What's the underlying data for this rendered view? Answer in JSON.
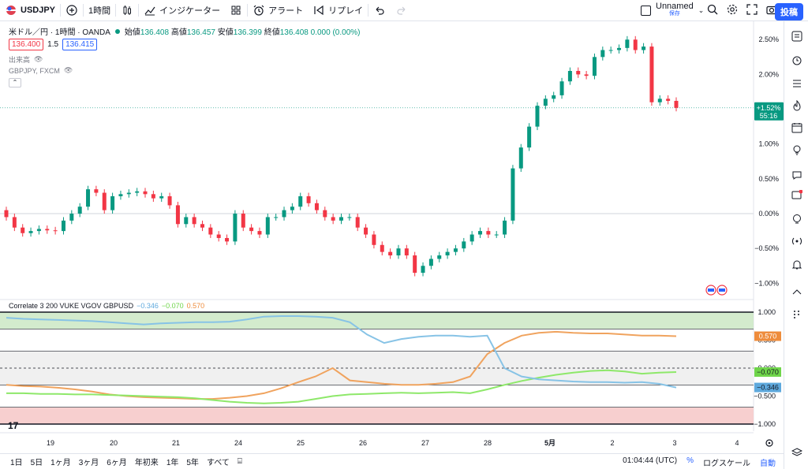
{
  "toolbar": {
    "symbol": "USDJPY",
    "interval": "1時間",
    "indicators": "インジケーター",
    "alert": "アラート",
    "replay": "リプレイ",
    "layout_name": "Unnamed",
    "layout_status": "保存",
    "publish": "投稿"
  },
  "legend": {
    "title": "米ドル／円 · 1時間 · OANDA",
    "open_label": "始値",
    "open": "136.408",
    "high_label": "高値",
    "high": "136.457",
    "low_label": "安値",
    "low": "136.399",
    "close_label": "終値",
    "close": "136.408",
    "change": "0.000 (0.00%)",
    "bid": "136.400",
    "spread": "1.5",
    "ask": "136.415",
    "volume_label": "出来高",
    "compare_label": "GBPJPY, FXCM"
  },
  "price_scale": {
    "labels": [
      "2.50%",
      "2.00%",
      "1.50%",
      "1.00%",
      "0.50%",
      "0.00%",
      "−0.50%",
      "−1.00%"
    ],
    "current_label": "+1.52%",
    "countdown": "55:16",
    "current_color": "#089981"
  },
  "indicator": {
    "name": "Correlate 3 200 VUKE VGOV GBPUSD",
    "v1": "−0.346",
    "v2": "−0.070",
    "v3": "0.570",
    "scale_labels": [
      "1.000",
      "0.500",
      "0.000",
      "−0.500",
      "−1.000"
    ],
    "label_orange": "0.570",
    "label_green": "−0.070",
    "label_blue": "−0.346",
    "colors": {
      "blue": "#87c3e6",
      "green": "#8ee86a",
      "orange": "#f0a35e"
    }
  },
  "time_axis": [
    "19",
    "20",
    "21",
    "24",
    "25",
    "26",
    "27",
    "28",
    "5月",
    "2",
    "3",
    "4"
  ],
  "bottombar": {
    "ranges": [
      "1日",
      "5日",
      "1ヶ月",
      "3ヶ月",
      "6ヶ月",
      "年初来",
      "1年",
      "5年",
      "すべて"
    ],
    "time": "01:04:44 (UTC)",
    "percent": "%",
    "log": "ログスケール",
    "auto": "自動"
  },
  "chart_data": {
    "type": "candlestick",
    "ylabel": "%",
    "ylim": [
      -1.2,
      2.65
    ],
    "closes_pct": [
      -0.05,
      -0.2,
      -0.28,
      -0.25,
      -0.22,
      -0.24,
      -0.25,
      -0.1,
      0.0,
      0.1,
      0.35,
      0.3,
      0.05,
      0.25,
      0.28,
      0.3,
      0.32,
      0.28,
      0.22,
      0.25,
      0.12,
      -0.15,
      -0.05,
      -0.15,
      -0.2,
      -0.3,
      -0.35,
      -0.4,
      0.0,
      -0.2,
      -0.25,
      -0.3,
      -0.05,
      -0.05,
      0.05,
      0.1,
      0.25,
      0.15,
      0.05,
      -0.05,
      -0.1,
      -0.05,
      -0.05,
      -0.2,
      -0.3,
      -0.45,
      -0.55,
      -0.6,
      -0.5,
      -0.6,
      -0.85,
      -0.75,
      -0.65,
      -0.6,
      -0.55,
      -0.5,
      -0.4,
      -0.3,
      -0.25,
      -0.3,
      -0.3,
      -0.1,
      0.65,
      0.95,
      1.25,
      1.55,
      1.65,
      1.7,
      1.9,
      2.05,
      2.0,
      1.98,
      2.25,
      2.35,
      2.35,
      2.38,
      2.5,
      2.35,
      2.4,
      1.6,
      1.65,
      1.62,
      1.52
    ]
  }
}
